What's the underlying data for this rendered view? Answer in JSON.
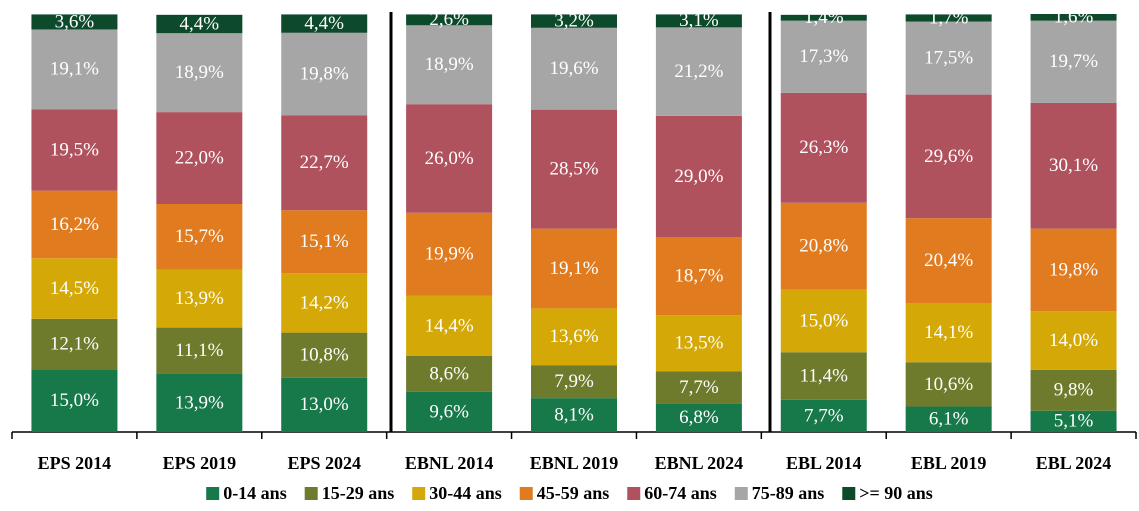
{
  "chart_data": {
    "type": "stacked_bar",
    "categories": [
      "EPS 2014",
      "EPS 2019",
      "EPS 2024",
      "EBNL 2014",
      "EBNL 2019",
      "EBNL 2024",
      "EBL 2014",
      "EBL 2019",
      "EBL 2024"
    ],
    "series": [
      {
        "name": "0-14 ans",
        "color": "#17784a",
        "values": [
          15.0,
          13.9,
          13.0,
          9.6,
          8.1,
          6.8,
          7.7,
          6.1,
          5.1
        ],
        "value_labels": [
          "15,0%",
          "13,9%",
          "13,0%",
          "9,6%",
          "8,1%",
          "6,8%",
          "7,7%",
          "6,1%",
          "5,1%"
        ]
      },
      {
        "name": "15-29 ans",
        "color": "#6e7a2c",
        "values": [
          12.1,
          11.1,
          10.8,
          8.6,
          7.9,
          7.7,
          11.4,
          10.6,
          9.8
        ],
        "value_labels": [
          "12,1%",
          "11,1%",
          "10,8%",
          "8,6%",
          "7,9%",
          "7,7%",
          "11,4%",
          "10,6%",
          "9,8%"
        ]
      },
      {
        "name": "30-44 ans",
        "color": "#d4a806",
        "values": [
          14.5,
          13.9,
          14.2,
          14.4,
          13.6,
          13.5,
          15.0,
          14.1,
          14.0
        ],
        "value_labels": [
          "14,5%",
          "13,9%",
          "14,2%",
          "14,4%",
          "13,6%",
          "13,5%",
          "15,0%",
          "14,1%",
          "14,0%"
        ]
      },
      {
        "name": "45-59 ans",
        "color": "#e07b20",
        "values": [
          16.2,
          15.7,
          15.1,
          19.9,
          19.1,
          18.7,
          20.8,
          20.4,
          19.8
        ],
        "value_labels": [
          "16,2%",
          "15,7%",
          "15,1%",
          "19,9%",
          "19,1%",
          "18,7%",
          "20,8%",
          "20,4%",
          "19,8%"
        ]
      },
      {
        "name": "60-74 ans",
        "color": "#b0515e",
        "values": [
          19.5,
          22.0,
          22.7,
          26.0,
          28.5,
          29.0,
          26.3,
          29.6,
          30.1
        ],
        "value_labels": [
          "19,5%",
          "22,0%",
          "22,7%",
          "26,0%",
          "28,5%",
          "29,0%",
          "26,3%",
          "29,6%",
          "30,1%"
        ]
      },
      {
        "name": "75-89 ans",
        "color": "#a6a6a6",
        "values": [
          19.1,
          18.9,
          19.8,
          18.9,
          19.6,
          21.2,
          17.3,
          17.5,
          19.7
        ],
        "value_labels": [
          "19,1%",
          "18,9%",
          "19,8%",
          "18,9%",
          "19,6%",
          "21,2%",
          "17,3%",
          "17,5%",
          "19,7%"
        ]
      },
      {
        "name": ">= 90 ans",
        "color": "#0d4a2b",
        "values": [
          3.6,
          4.4,
          4.4,
          2.6,
          3.2,
          3.1,
          1.4,
          1.7,
          1.6
        ],
        "value_labels": [
          "3,6%",
          "4,4%",
          "4,4%",
          "2,6%",
          "3,2%",
          "3,1%",
          "1,4%",
          "1,7%",
          "1,6%"
        ]
      }
    ]
  }
}
